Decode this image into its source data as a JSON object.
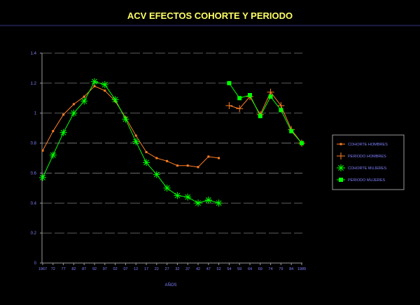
{
  "colors": {
    "background": "#000000",
    "title": "#ffff66",
    "title_rule": "#1c1c4a",
    "axis": "#9a9a9a",
    "gridline": "#7a7a7a",
    "tick_label": "#8080ff",
    "legend_text": "#8080ff",
    "legend_border": "#9a9a9a",
    "orange": "#ff7f27",
    "green": "#00ff00"
  },
  "chart_data": {
    "type": "line",
    "title": "ACV EFECTOS COHORTE Y PERIODO",
    "xlabel": "AÑOS",
    "ylabel": "",
    "ylim": [
      0,
      1.4
    ],
    "yticks": [
      0,
      0.2,
      0.4,
      0.6,
      0.8,
      1,
      1.2,
      1.4
    ],
    "ytick_labels": [
      "0",
      "0.2",
      "0.4",
      "0.6",
      "0.8",
      "1",
      "1.2",
      "1.4"
    ],
    "xtick_labels": [
      "1967",
      "72",
      "77",
      "82",
      "87",
      "92",
      "97",
      "02",
      "07",
      "12",
      "17",
      "22",
      "27",
      "32",
      "37",
      "42",
      "47",
      "52",
      "54",
      "59",
      "64",
      "69",
      "74",
      "79",
      "84",
      "1989"
    ],
    "grid": true,
    "legend_position": "right",
    "series": [
      {
        "name": "COHORTE HOMBRES",
        "color": "#ff7f27",
        "marker": "small-square",
        "x_index": [
          0,
          1,
          2,
          3,
          4,
          5,
          6,
          7,
          8,
          9,
          10,
          11,
          12,
          13,
          14,
          15,
          16,
          17
        ],
        "values": [
          0.75,
          0.88,
          0.99,
          1.06,
          1.11,
          1.18,
          1.15,
          1.08,
          0.97,
          0.85,
          0.74,
          0.7,
          0.68,
          0.65,
          0.65,
          0.64,
          0.71,
          0.7
        ]
      },
      {
        "name": "PERIODO HOMBRES",
        "color": "#ff7f27",
        "marker": "plus",
        "x_index": [
          18,
          19,
          20,
          21,
          22,
          23,
          24,
          25
        ],
        "values": [
          1.05,
          1.03,
          1.11,
          0.99,
          1.14,
          1.05,
          0.89,
          0.8
        ]
      },
      {
        "name": "COHORTE MUJERES",
        "color": "#00ff00",
        "marker": "asterisk",
        "x_index": [
          0,
          1,
          2,
          3,
          4,
          5,
          6,
          7,
          8,
          9,
          10,
          11,
          12,
          13,
          14,
          15,
          16,
          17
        ],
        "values": [
          0.57,
          0.72,
          0.87,
          1.0,
          1.08,
          1.21,
          1.19,
          1.09,
          0.96,
          0.81,
          0.67,
          0.59,
          0.5,
          0.45,
          0.44,
          0.4,
          0.42,
          0.4
        ]
      },
      {
        "name": "PERIODO MUJERES",
        "color": "#00ff00",
        "marker": "square",
        "x_index": [
          18,
          19,
          20,
          21,
          22,
          23,
          24,
          25
        ],
        "values": [
          1.2,
          1.1,
          1.12,
          0.98,
          1.11,
          1.02,
          0.88,
          0.8
        ]
      }
    ]
  }
}
